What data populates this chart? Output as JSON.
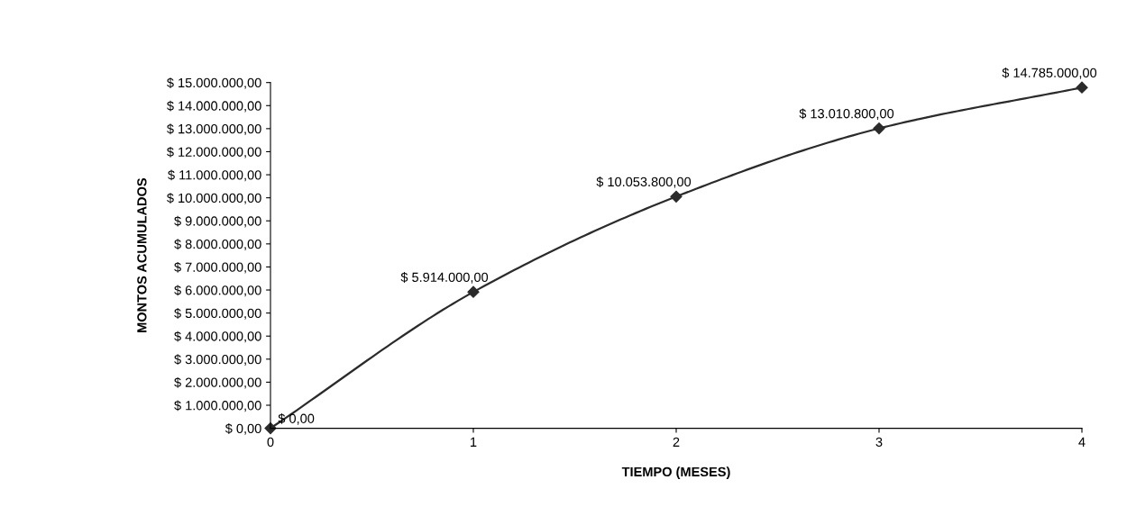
{
  "chart_data": {
    "type": "line",
    "xlabel": "TIEMPO (MESES)",
    "ylabel": "MONTOS ACUMULADOS",
    "x": [
      0,
      1,
      2,
      3,
      4
    ],
    "series": [
      {
        "color": "#2b2b2b",
        "values": [
          0,
          5914000,
          10053800,
          13010800,
          14785000
        ],
        "value_labels": [
          "$ 0,00",
          "$ 5.914.000,00",
          "$ 10.053.800,00",
          "$ 13.010.800,00",
          "$ 14.785.000,00"
        ]
      }
    ],
    "xlim": [
      0,
      4
    ],
    "xticks": [
      0,
      1,
      2,
      3,
      4
    ],
    "ylim": [
      0,
      15000000
    ],
    "yticks": [
      {
        "value": 0,
        "label": "$ 0,00"
      },
      {
        "value": 1000000,
        "label": "$ 1.000.000,00"
      },
      {
        "value": 2000000,
        "label": "$ 2.000.000,00"
      },
      {
        "value": 3000000,
        "label": "$ 3.000.000,00"
      },
      {
        "value": 4000000,
        "label": "$ 4.000.000,00"
      },
      {
        "value": 5000000,
        "label": "$ 5.000.000,00"
      },
      {
        "value": 6000000,
        "label": "$ 6.000.000,00"
      },
      {
        "value": 7000000,
        "label": "$ 7.000.000,00"
      },
      {
        "value": 8000000,
        "label": "$ 8.000.000,00"
      },
      {
        "value": 9000000,
        "label": "$ 9.000.000,00"
      },
      {
        "value": 10000000,
        "label": "$ 10.000.000,00"
      },
      {
        "value": 11000000,
        "label": "$ 11.000.000,00"
      },
      {
        "value": 12000000,
        "label": "$ 12.000.000,00"
      },
      {
        "value": 13000000,
        "label": "$ 13.000.000,00"
      },
      {
        "value": 14000000,
        "label": "$ 14.000.000,00"
      },
      {
        "value": 15000000,
        "label": "$ 15.000.000,00"
      }
    ],
    "grid": false,
    "legend": false,
    "marker": "diamond",
    "line_style": "solid"
  }
}
